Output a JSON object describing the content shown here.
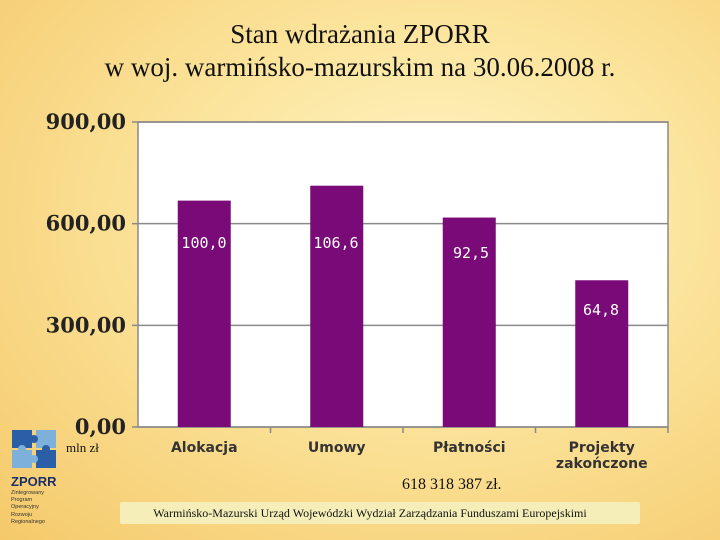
{
  "title_line1": "Stan wdrażania ZPORR",
  "title_line2": "w woj. warmińsko-mazurskim na 30.06.2008 r.",
  "unit_label": "mln zł",
  "total_label": "618 318 387 zł.",
  "footer": "Warmińsko-Mazurski Urząd Wojewódzki Wydział Zarządzania Funduszami Europejskimi",
  "logo": {
    "name": "ZPORR",
    "lines": [
      "Zintegrowany",
      "Program",
      "Operacyjny",
      "Rozwoju",
      "Regionalnego"
    ]
  },
  "colors": {
    "bar": "#7a0a78",
    "plot_bg": "#ffffff",
    "grid": "#8a8a8a"
  },
  "chart_data": {
    "type": "bar",
    "categories": [
      "Alokacja",
      "Umowy",
      "Płatności",
      "Projekty zakończone"
    ],
    "values": [
      668,
      712,
      618,
      433
    ],
    "data_labels": [
      "100,0",
      "106,6",
      "92,5",
      "64,8"
    ],
    "ylim": [
      0,
      900
    ],
    "yticks": [
      0,
      300,
      600,
      900
    ],
    "ytick_labels": [
      "0,00",
      "300,00",
      "600,00",
      "900,00"
    ],
    "grid": true,
    "xlabel": "",
    "ylabel": ""
  }
}
